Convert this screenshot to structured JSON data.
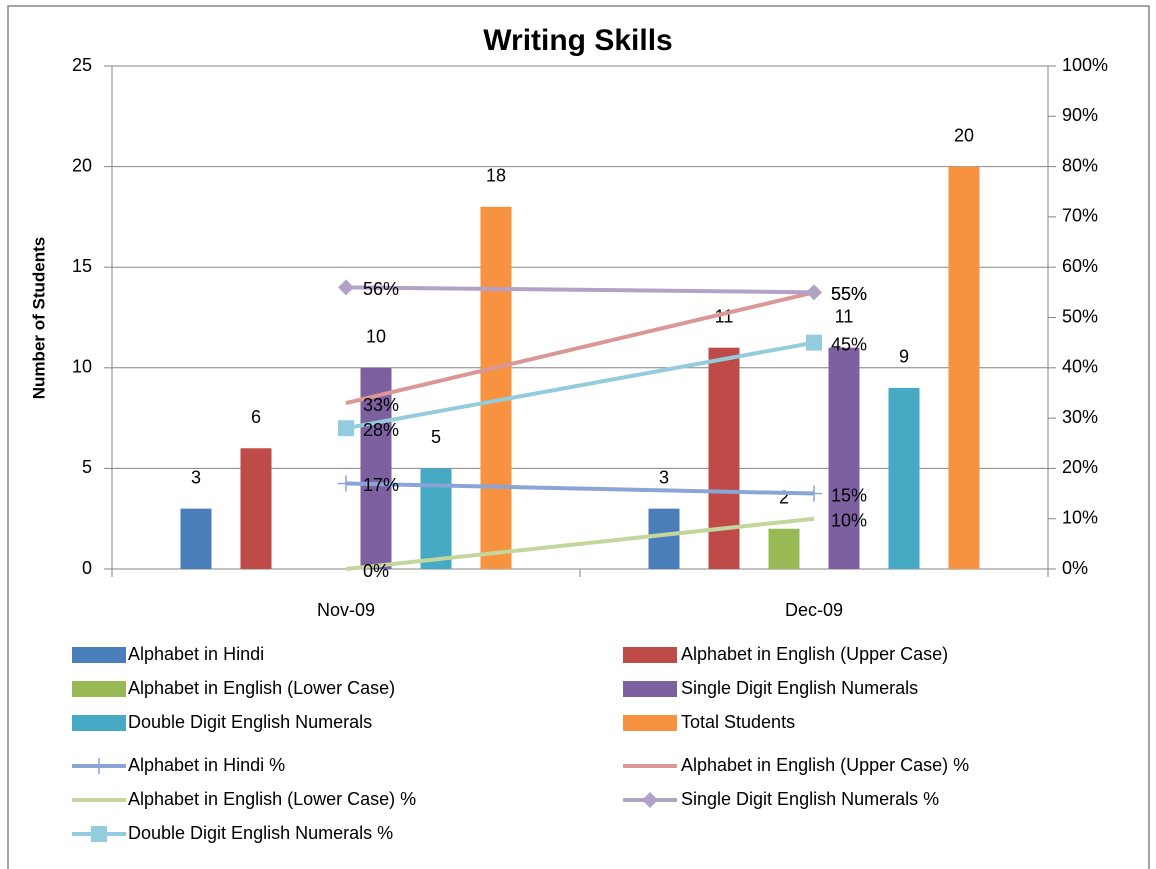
{
  "chart_data": {
    "type": "bar",
    "title": "Writing Skills",
    "y_label": "Number of Students",
    "categories": [
      "Nov-09",
      "Dec-09"
    ],
    "ylim": [
      0,
      25
    ],
    "yticks": [
      0,
      5,
      10,
      15,
      20,
      25
    ],
    "y2lim": [
      0,
      100
    ],
    "y2ticks": [
      {
        "value": 0,
        "label": "0%"
      },
      {
        "value": 10,
        "label": "10%"
      },
      {
        "value": 20,
        "label": "20%"
      },
      {
        "value": 30,
        "label": "30%"
      },
      {
        "value": 40,
        "label": "40%"
      },
      {
        "value": 50,
        "label": "50%"
      },
      {
        "value": 60,
        "label": "60%"
      },
      {
        "value": 70,
        "label": "70%"
      },
      {
        "value": 80,
        "label": "80%"
      },
      {
        "value": 90,
        "label": "90%"
      },
      {
        "value": 100,
        "label": "100%"
      }
    ],
    "grid": true,
    "legend": "bottom",
    "series": [
      {
        "name": "Alphabet in Hindi",
        "type": "bar",
        "color": "#4a7ebb",
        "values": [
          3,
          3
        ]
      },
      {
        "name": "Alphabet in English (Upper Case)",
        "type": "bar",
        "color": "#be4b48",
        "values": [
          6,
          11
        ]
      },
      {
        "name": "Alphabet in English (Lower Case)",
        "type": "bar",
        "color": "#98b954",
        "values": [
          null,
          2
        ]
      },
      {
        "name": "Single Digit English Numerals",
        "type": "bar",
        "color": "#7d60a0",
        "values": [
          10,
          11
        ]
      },
      {
        "name": "Double Digit English Numerals",
        "type": "bar",
        "color": "#46aac5",
        "values": [
          5,
          9
        ]
      },
      {
        "name": "Total Students",
        "type": "bar",
        "color": "#f69240",
        "values": [
          18,
          20
        ]
      },
      {
        "name": "Alphabet in Hindi %",
        "type": "line",
        "axis": "y2",
        "color": "#8aa4d6",
        "marker": "plus",
        "values": [
          17,
          15
        ],
        "value_labels": [
          "17%",
          "15%"
        ]
      },
      {
        "name": "Alphabet in English (Upper Case) %",
        "type": "line",
        "axis": "y2",
        "color": "#d99795",
        "marker": "none",
        "values": [
          33,
          55
        ],
        "value_labels": [
          "33%",
          "55%"
        ]
      },
      {
        "name": "Alphabet in English (Lower Case) %",
        "type": "line",
        "axis": "y2",
        "color": "#c3d69b",
        "marker": "none",
        "values": [
          0,
          10
        ],
        "value_labels": [
          "0%",
          "10%"
        ]
      },
      {
        "name": "Single Digit English Numerals %",
        "type": "line",
        "axis": "y2",
        "color": "#b3a2c7",
        "marker": "diamond",
        "values": [
          56,
          55
        ],
        "value_labels": [
          "56%",
          "55%"
        ]
      },
      {
        "name": "Double Digit English Numerals %",
        "type": "line",
        "axis": "y2",
        "color": "#93cddd",
        "marker": "square",
        "values": [
          28,
          45
        ],
        "value_labels": [
          "28%",
          "45%"
        ]
      }
    ]
  }
}
